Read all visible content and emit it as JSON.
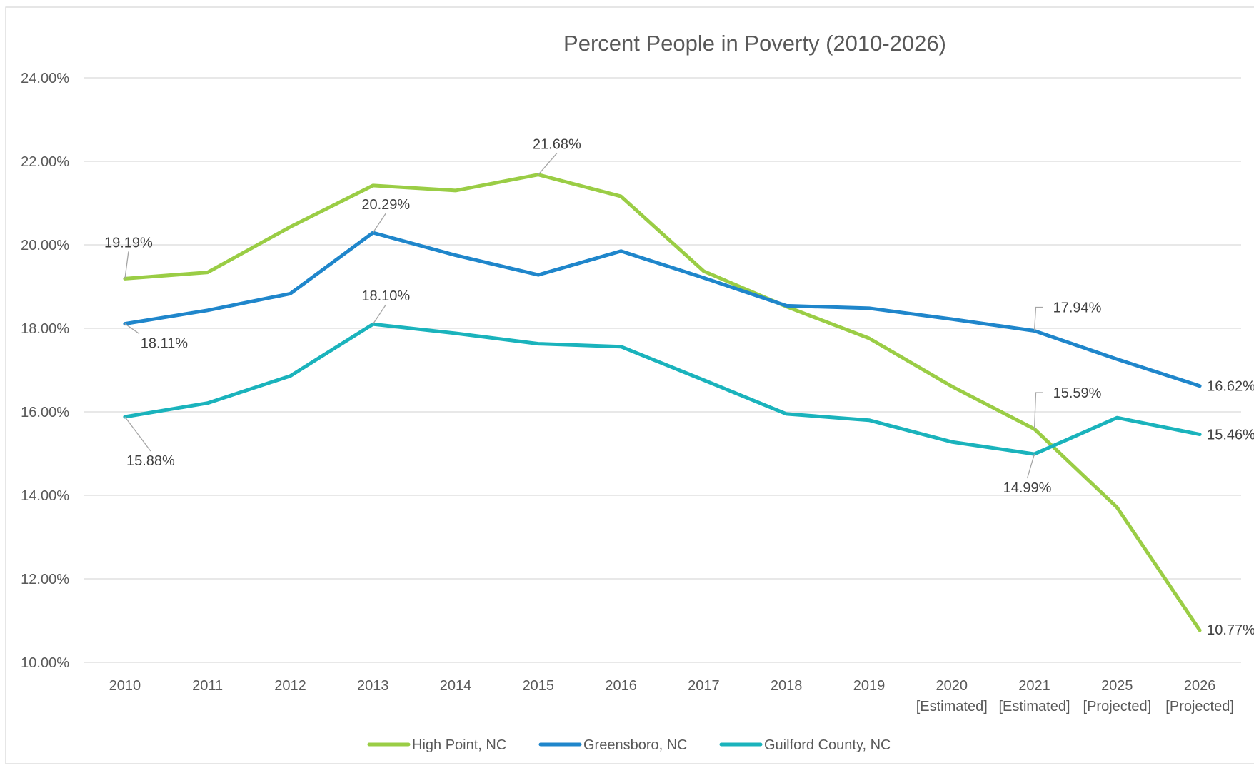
{
  "chart_data": {
    "type": "line",
    "title": "Percent People in Poverty (2010-2026)",
    "xlabel": "",
    "ylabel": "",
    "ylim": [
      0.1,
      0.24
    ],
    "y_ticks": [
      "10.00%",
      "12.00%",
      "14.00%",
      "16.00%",
      "18.00%",
      "20.00%",
      "22.00%",
      "24.00%"
    ],
    "categories": [
      "2010",
      "2011",
      "2012",
      "2013",
      "2014",
      "2015",
      "2016",
      "2017",
      "2018",
      "2019",
      "2020",
      "2021",
      "2025",
      "2026"
    ],
    "category_sublabels": [
      "",
      "",
      "",
      "",
      "",
      "",
      "",
      "",
      "",
      "",
      "[Estimated]",
      "[Estimated]",
      "[Projected]",
      "[Projected]"
    ],
    "grid": true,
    "legend_position": "bottom",
    "series": [
      {
        "name": "High Point, NC",
        "color": "#9ACD45",
        "values": [
          0.1919,
          0.1934,
          0.2043,
          0.2142,
          0.213,
          0.2168,
          0.2116,
          0.1937,
          0.1852,
          0.1776,
          0.1661,
          0.1559,
          0.1371,
          0.1077
        ],
        "labels": {
          "0": "19.19%",
          "5": "21.68%",
          "11": "15.59%",
          "13": "10.77%"
        }
      },
      {
        "name": "Greensboro, NC",
        "color": "#1F86CB",
        "values": [
          0.1811,
          0.1843,
          0.1883,
          0.2029,
          0.1975,
          0.1928,
          0.1985,
          0.1921,
          0.1854,
          0.1848,
          0.1822,
          0.1794,
          0.1726,
          0.1662
        ],
        "labels": {
          "0": "18.11%",
          "3": "20.29%",
          "11": "17.94%",
          "13": "16.62%"
        }
      },
      {
        "name": "Guilford County, NC",
        "color": "#1AB3BC",
        "values": [
          0.1588,
          0.1621,
          0.1686,
          0.181,
          0.1788,
          0.1763,
          0.1756,
          0.1676,
          0.1595,
          0.158,
          0.1528,
          0.1499,
          0.1586,
          0.1546
        ],
        "labels": {
          "0": "15.88%",
          "3": "18.10%",
          "11": "14.99%",
          "13": "15.46%"
        }
      }
    ]
  }
}
